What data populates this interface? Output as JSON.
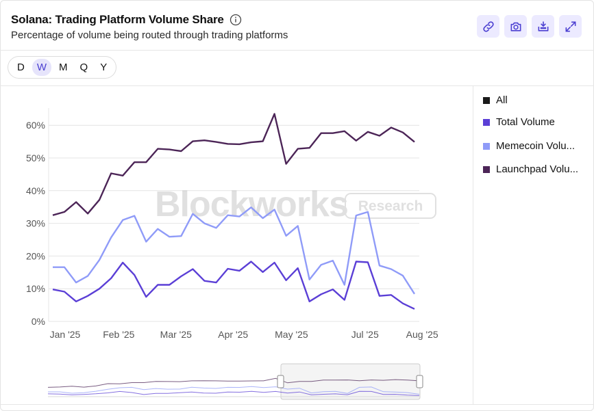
{
  "header": {
    "title": "Solana: Trading Platform Volume Share",
    "subtitle": "Percentage of volume being routed through trading platforms"
  },
  "toolbar": {
    "buttons": [
      "link-icon",
      "camera-icon",
      "download-icon",
      "expand-icon"
    ]
  },
  "timeframes": {
    "options": [
      "D",
      "W",
      "M",
      "Q",
      "Y"
    ],
    "selected": "W"
  },
  "watermark": {
    "brand": "Blockworks",
    "tag": "Research"
  },
  "legend": {
    "items": [
      {
        "label": "All",
        "color": "#1a1a1a"
      },
      {
        "label": "Total Volume",
        "color": "#5b3fd6"
      },
      {
        "label": "Memecoin Volu...",
        "color": "#8f9bf8"
      },
      {
        "label": "Launchpad Volu...",
        "color": "#4c2557"
      }
    ]
  },
  "chart_data": {
    "type": "line",
    "title": "Solana: Trading Platform Volume Share",
    "ylim": [
      0,
      65
    ],
    "yticks": [
      0,
      10,
      20,
      30,
      40,
      50,
      60
    ],
    "ytick_labels": [
      "0%",
      "10%",
      "20%",
      "30%",
      "40%",
      "50%",
      "60%"
    ],
    "xtick_labels": [
      "Jan '25",
      "Feb '25",
      "Mar '25",
      "Apr '25",
      "May '25",
      "Jul '25",
      "Aug '25"
    ],
    "xtick_index": [
      0,
      4.6,
      9.5,
      14.4,
      19.4,
      25.7,
      30.6
    ],
    "x_count": 32,
    "grid": true,
    "series": [
      {
        "name": "Launchpad Volume",
        "color": "#4c2557",
        "values": [
          32.5,
          33.5,
          36.5,
          33,
          37.2,
          45.3,
          44.6,
          48.7,
          48.7,
          52.8,
          52.6,
          52.1,
          55.1,
          55.4,
          54.9,
          54.3,
          54.2,
          54.8,
          55.1,
          63.5,
          48.2,
          52.8,
          53.1,
          57.6,
          57.6,
          58.2,
          55.3,
          58,
          56.8,
          59.3,
          57.8,
          54.9
        ]
      },
      {
        "name": "Memecoin Volume",
        "color": "#8f9bf8",
        "values": [
          16.6,
          16.6,
          11.9,
          13.9,
          18.8,
          25.7,
          31,
          32.3,
          24.4,
          28.3,
          25.9,
          26.1,
          32.9,
          30,
          28.6,
          32.5,
          32.1,
          34.9,
          31.6,
          34.2,
          26.2,
          29.2,
          12.8,
          17.3,
          18.6,
          11.2,
          32.4,
          33.5,
          17.1,
          16,
          14,
          8.4
        ]
      },
      {
        "name": "Total Volume",
        "color": "#5b3fd6",
        "values": [
          9.8,
          9.1,
          6.1,
          7.8,
          10,
          13.2,
          18,
          14.2,
          7.5,
          11.2,
          11.2,
          13.8,
          16,
          12.4,
          11.9,
          16.1,
          15.5,
          18.3,
          15.1,
          18,
          12.6,
          16.3,
          6.1,
          8.3,
          9.8,
          6.6,
          18.3,
          18.1,
          7.8,
          8.1,
          5.5,
          3.8
        ]
      }
    ]
  }
}
